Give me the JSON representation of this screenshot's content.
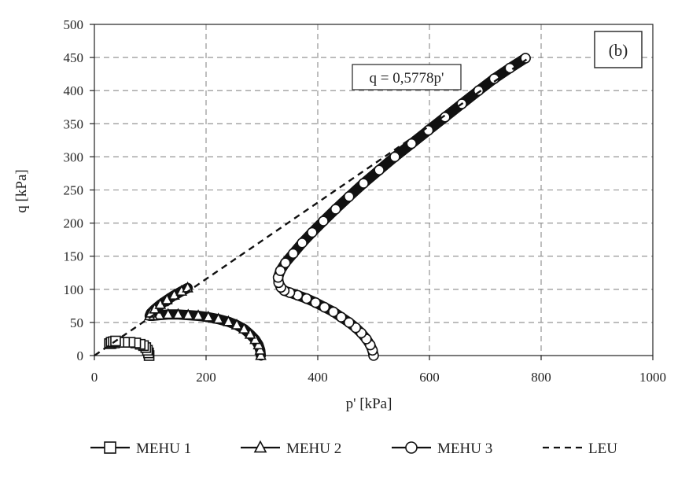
{
  "chart_data": {
    "type": "scatter",
    "panel_label": "(b)",
    "xlabel": "p' [kPa]",
    "ylabel": "q [kPa]",
    "xlim": [
      0,
      1000
    ],
    "ylim": [
      0,
      500
    ],
    "xticks": [
      0,
      200,
      400,
      600,
      800,
      1000
    ],
    "yticks": [
      0,
      50,
      100,
      150,
      200,
      250,
      300,
      350,
      400,
      450,
      500
    ],
    "grid": true,
    "legend_position": "bottom",
    "annotation": "q = 0,5778p'",
    "series": [
      {
        "name": "MEHU 1",
        "marker": "square",
        "x": [
          98,
          97,
          95,
          92,
          88,
          82,
          74,
          64,
          54,
          44,
          36,
          30,
          27,
          30,
          34,
          38
        ],
        "y": [
          0,
          4,
          8,
          12,
          15,
          17,
          19,
          20,
          20,
          20,
          19,
          18,
          18,
          20,
          21,
          22
        ]
      },
      {
        "name": "MEHU 2",
        "marker": "triangle",
        "x": [
          298,
          297,
          294,
          288,
          279,
          268,
          255,
          240,
          222,
          204,
          186,
          168,
          150,
          132,
          116,
          104,
          99,
          101,
          108,
          118,
          130,
          143,
          156,
          167
        ],
        "y": [
          0,
          8,
          16,
          24,
          32,
          40,
          46,
          51,
          55,
          58,
          60,
          61,
          62,
          62,
          61,
          60,
          60,
          64,
          70,
          77,
          84,
          91,
          97,
          102
        ]
      },
      {
        "name": "MEHU 3",
        "marker": "circle",
        "x": [
          500,
          498,
          494,
          487,
          478,
          468,
          456,
          442,
          428,
          412,
          396,
          380,
          364,
          350,
          340,
          334,
          330,
          329,
          333,
          342,
          356,
          372,
          390,
          410,
          432,
          456,
          482,
          510,
          538,
          568,
          598,
          628,
          658,
          688,
          716,
          744,
          772
        ],
        "y": [
          0,
          8,
          16,
          25,
          34,
          42,
          50,
          58,
          66,
          73,
          80,
          86,
          91,
          95,
          98,
          103,
          110,
          118,
          128,
          140,
          154,
          170,
          186,
          203,
          221,
          240,
          260,
          280,
          300,
          320,
          340,
          360,
          380,
          400,
          418,
          434,
          449
        ]
      },
      {
        "name": "LEU",
        "line": "dashed",
        "slope": 0.5778,
        "x": [
          0,
          775
        ],
        "y": [
          0,
          447.8
        ]
      }
    ]
  }
}
